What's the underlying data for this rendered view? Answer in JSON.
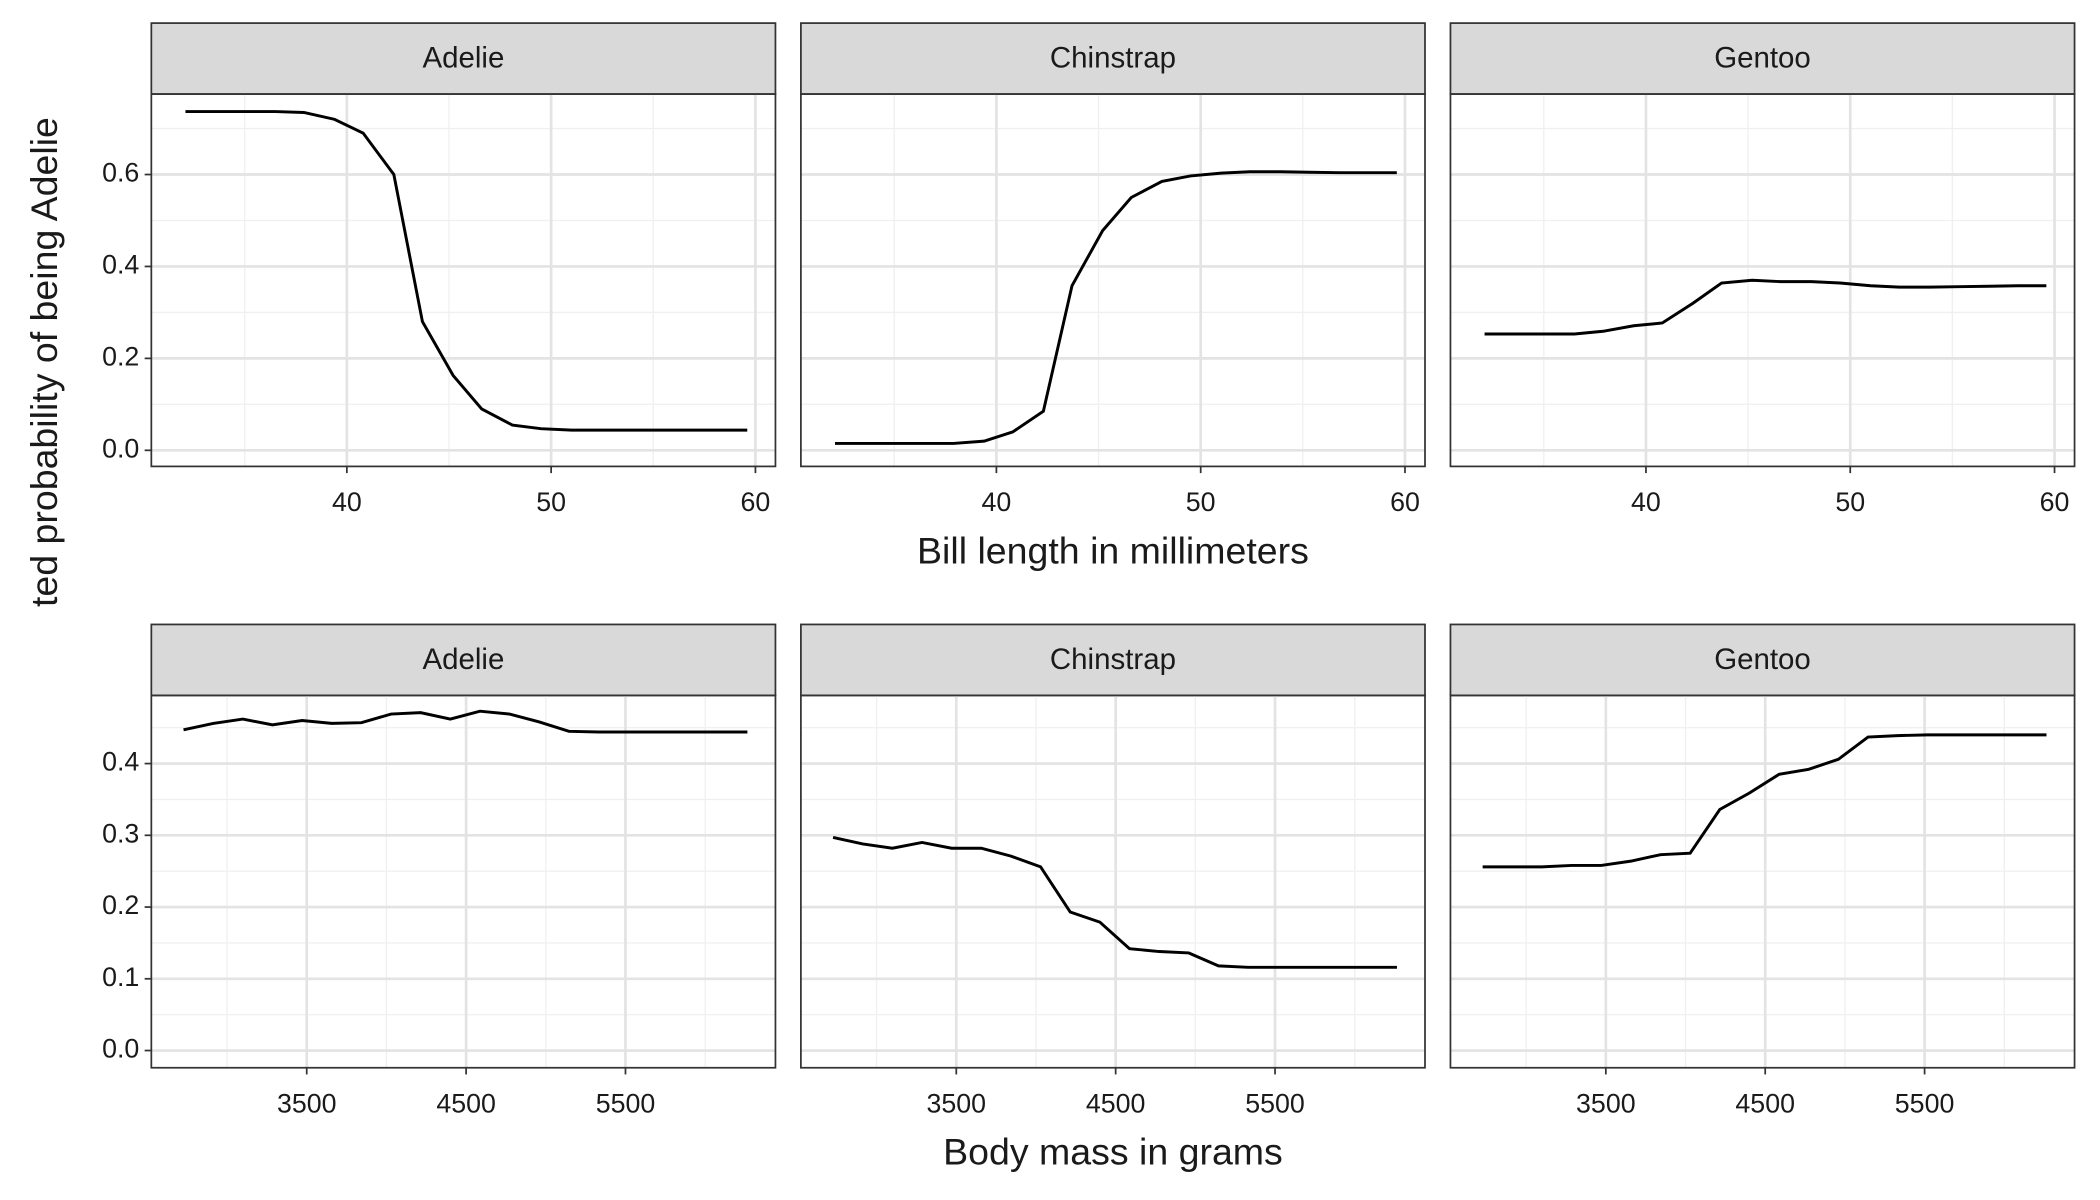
{
  "chart_data": [
    {
      "type": "line",
      "ylabel": "ted probability of being Adelie",
      "xlabel": "Bill length in millimeters",
      "color": "#000000",
      "grid": true,
      "xlim": [
        30.43,
        60.98
      ],
      "xticks": [
        40,
        50,
        60
      ],
      "ylim": [
        -0.035,
        0.775
      ],
      "yticks": [
        {
          "value": 0,
          "label": "0.0"
        },
        0.2,
        0.4,
        0.6
      ],
      "panels": [
        {
          "title": "Adelie",
          "x": [
            32.1,
            33.6,
            35.0,
            36.5,
            37.9,
            39.4,
            40.8,
            42.3,
            43.7,
            45.2,
            46.6,
            48.1,
            49.5,
            51.0,
            52.4,
            53.9,
            55.3,
            56.8,
            58.2,
            59.6
          ],
          "values": [
            0.737,
            0.737,
            0.737,
            0.737,
            0.735,
            0.72,
            0.69,
            0.6,
            0.28,
            0.163,
            0.09,
            0.055,
            0.047,
            0.044,
            0.044,
            0.044,
            0.044,
            0.044,
            0.044,
            0.044
          ]
        },
        {
          "title": "Chinstrap",
          "x": [
            32.1,
            33.6,
            35.0,
            36.5,
            37.9,
            39.4,
            40.8,
            42.3,
            43.7,
            45.2,
            46.6,
            48.1,
            49.5,
            51.0,
            52.4,
            53.9,
            55.3,
            56.8,
            58.2,
            59.6
          ],
          "values": [
            0.015,
            0.015,
            0.015,
            0.015,
            0.015,
            0.02,
            0.04,
            0.085,
            0.358,
            0.478,
            0.55,
            0.585,
            0.597,
            0.603,
            0.606,
            0.606,
            0.605,
            0.604,
            0.604,
            0.604
          ]
        },
        {
          "title": "Gentoo",
          "x": [
            32.1,
            33.6,
            35.0,
            36.5,
            37.9,
            39.4,
            40.8,
            42.3,
            43.7,
            45.2,
            46.6,
            48.1,
            49.5,
            51.0,
            52.4,
            53.9,
            55.3,
            56.8,
            58.2,
            59.6
          ],
          "values": [
            0.253,
            0.253,
            0.253,
            0.253,
            0.259,
            0.271,
            0.277,
            0.32,
            0.364,
            0.37,
            0.367,
            0.367,
            0.364,
            0.358,
            0.355,
            0.355,
            0.356,
            0.357,
            0.358,
            0.358
          ]
        }
      ]
    },
    {
      "type": "line",
      "xlabel": "Body mass in grams",
      "color": "#000000",
      "grid": true,
      "xlim": [
        2525,
        6441
      ],
      "xticks": [
        3500,
        4500,
        5500
      ],
      "ylim": [
        -0.024,
        0.495
      ],
      "yticks": [
        {
          "value": 0,
          "label": "0.0"
        },
        0.1,
        0.2,
        0.3,
        0.4
      ],
      "panels": [
        {
          "title": "Adelie",
          "x": [
            2727,
            2913,
            3099,
            3285,
            3471,
            3657,
            3843,
            4029,
            4215,
            4401,
            4587,
            4773,
            4959,
            5145,
            5331,
            5517,
            5703,
            5889,
            6075,
            6265
          ],
          "values": [
            0.447,
            0.456,
            0.462,
            0.454,
            0.46,
            0.456,
            0.457,
            0.469,
            0.471,
            0.462,
            0.473,
            0.469,
            0.458,
            0.445,
            0.444,
            0.444,
            0.444,
            0.444,
            0.444,
            0.444
          ]
        },
        {
          "title": "Chinstrap",
          "x": [
            2727,
            2913,
            3099,
            3285,
            3471,
            3657,
            3843,
            4029,
            4215,
            4401,
            4587,
            4773,
            4959,
            5145,
            5331,
            5517,
            5703,
            5889,
            6075,
            6265
          ],
          "values": [
            0.297,
            0.288,
            0.282,
            0.29,
            0.282,
            0.282,
            0.271,
            0.256,
            0.193,
            0.179,
            0.142,
            0.138,
            0.136,
            0.118,
            0.116,
            0.116,
            0.116,
            0.116,
            0.116,
            0.116
          ]
        },
        {
          "title": "Gentoo",
          "x": [
            2727,
            2913,
            3099,
            3285,
            3471,
            3657,
            3843,
            4029,
            4215,
            4401,
            4587,
            4773,
            4959,
            5145,
            5331,
            5517,
            5703,
            5889,
            6075,
            6265
          ],
          "values": [
            0.256,
            0.256,
            0.256,
            0.258,
            0.258,
            0.264,
            0.273,
            0.275,
            0.336,
            0.359,
            0.385,
            0.392,
            0.406,
            0.437,
            0.439,
            0.44,
            0.44,
            0.44,
            0.44,
            0.44
          ]
        }
      ]
    }
  ]
}
